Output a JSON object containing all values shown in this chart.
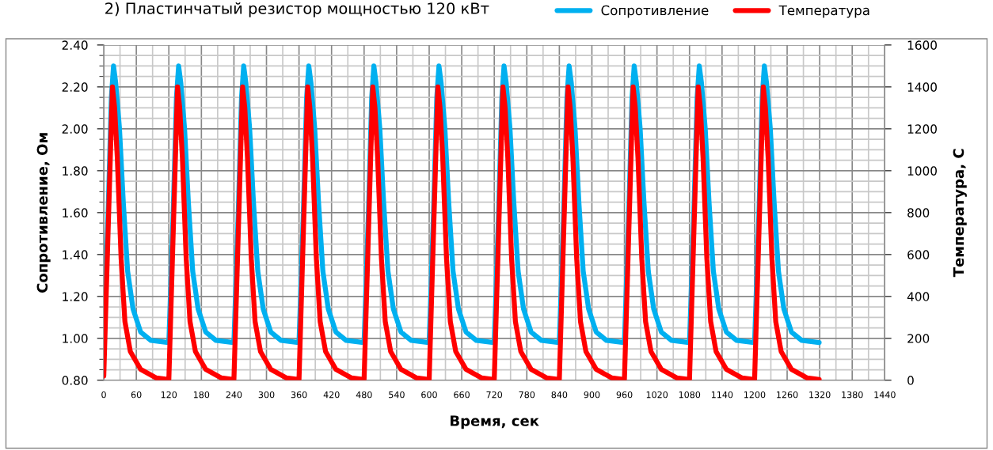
{
  "chart_data": {
    "type": "line",
    "title": "2) Пластинчатый резистор мощностью 120 кВт",
    "xlabel": "Время, сек",
    "ylabel": "Сопротивление, Ом",
    "y2label": "Температура, С",
    "xlim": [
      0,
      1440
    ],
    "xticks": [
      0,
      60,
      120,
      180,
      240,
      300,
      360,
      420,
      480,
      540,
      600,
      660,
      720,
      780,
      840,
      900,
      960,
      1020,
      1080,
      1140,
      1200,
      1260,
      1320,
      1380,
      1440
    ],
    "ylim": [
      0.8,
      2.4
    ],
    "yticks": [
      {
        "value": 0.8,
        "label": "0.80"
      },
      {
        "value": 1.0,
        "label": "1.00"
      },
      {
        "value": 1.2,
        "label": "1.20"
      },
      {
        "value": 1.4,
        "label": "1.40"
      },
      {
        "value": 1.6,
        "label": "1.60"
      },
      {
        "value": 1.8,
        "label": "1.80"
      },
      {
        "value": 2.0,
        "label": "2.00"
      },
      {
        "value": 2.2,
        "label": "2.20"
      },
      {
        "value": 2.4,
        "label": "2.40"
      }
    ],
    "y2lim": [
      0,
      1600
    ],
    "y2ticks": [
      0,
      200,
      400,
      600,
      800,
      1000,
      1200,
      1400,
      1600
    ],
    "grid": true,
    "legend": "right",
    "marker": "none",
    "line_style": "solid",
    "series": [
      {
        "name": "Сопротивление",
        "color": "#00b0f0",
        "axis": "y",
        "x": [
          0,
          8,
          14,
          18,
          22,
          29,
          36,
          44,
          54,
          68,
          87,
          119,
          120,
          128,
          134,
          138,
          142,
          149,
          156,
          164,
          174,
          188,
          207,
          239,
          240,
          248,
          254,
          258,
          262,
          269,
          276,
          284,
          294,
          308,
          327,
          359,
          360,
          368,
          374,
          378,
          382,
          389,
          396,
          404,
          414,
          428,
          447,
          479,
          480,
          488,
          494,
          498,
          502,
          509,
          516,
          524,
          534,
          548,
          567,
          599,
          600,
          608,
          614,
          618,
          622,
          629,
          636,
          644,
          654,
          668,
          687,
          719,
          720,
          728,
          734,
          738,
          742,
          749,
          756,
          764,
          774,
          788,
          807,
          839,
          840,
          848,
          854,
          858,
          862,
          869,
          876,
          884,
          894,
          908,
          927,
          959,
          960,
          968,
          974,
          978,
          982,
          989,
          996,
          1004,
          1014,
          1028,
          1047,
          1079,
          1080,
          1088,
          1094,
          1098,
          1102,
          1109,
          1116,
          1124,
          1134,
          1148,
          1167,
          1199,
          1200,
          1208,
          1214,
          1218,
          1222,
          1229,
          1236,
          1244,
          1254,
          1268,
          1287,
          1319
        ],
        "values": [
          0.98,
          1.6,
          2.15,
          2.3,
          2.22,
          2.0,
          1.65,
          1.32,
          1.14,
          1.03,
          0.99,
          0.98,
          0.98,
          1.6,
          2.15,
          2.3,
          2.22,
          2.0,
          1.65,
          1.32,
          1.14,
          1.03,
          0.99,
          0.98,
          0.98,
          1.6,
          2.15,
          2.3,
          2.22,
          2.0,
          1.65,
          1.32,
          1.14,
          1.03,
          0.99,
          0.98,
          0.98,
          1.6,
          2.15,
          2.3,
          2.22,
          2.0,
          1.65,
          1.32,
          1.14,
          1.03,
          0.99,
          0.98,
          0.98,
          1.6,
          2.15,
          2.3,
          2.22,
          2.0,
          1.65,
          1.32,
          1.14,
          1.03,
          0.99,
          0.98,
          0.98,
          1.6,
          2.15,
          2.3,
          2.22,
          2.0,
          1.65,
          1.32,
          1.14,
          1.03,
          0.99,
          0.98,
          0.98,
          1.6,
          2.15,
          2.3,
          2.22,
          2.0,
          1.65,
          1.32,
          1.14,
          1.03,
          0.99,
          0.98,
          0.98,
          1.6,
          2.15,
          2.3,
          2.22,
          2.0,
          1.65,
          1.32,
          1.14,
          1.03,
          0.99,
          0.98,
          0.98,
          1.6,
          2.15,
          2.3,
          2.22,
          2.0,
          1.65,
          1.32,
          1.14,
          1.03,
          0.99,
          0.98,
          0.98,
          1.6,
          2.15,
          2.3,
          2.22,
          2.0,
          1.65,
          1.32,
          1.14,
          1.03,
          0.99,
          0.98,
          0.98,
          1.6,
          2.15,
          2.3,
          2.22,
          2.0,
          1.65,
          1.32,
          1.14,
          1.03,
          0.99,
          0.98
        ]
      },
      {
        "name": "Температура",
        "color": "#ff0000",
        "axis": "y2",
        "x": [
          0,
          16,
          20,
          25,
          32,
          39,
          49,
          68,
          97,
          119,
          120,
          136,
          140,
          145,
          152,
          159,
          169,
          188,
          217,
          239,
          240,
          256,
          260,
          265,
          272,
          279,
          289,
          308,
          337,
          359,
          360,
          376,
          380,
          385,
          392,
          399,
          409,
          428,
          457,
          479,
          480,
          496,
          500,
          505,
          512,
          519,
          529,
          548,
          577,
          599,
          600,
          616,
          620,
          625,
          632,
          639,
          649,
          668,
          697,
          719,
          720,
          736,
          740,
          745,
          752,
          759,
          769,
          788,
          817,
          839,
          840,
          856,
          860,
          865,
          872,
          879,
          889,
          908,
          937,
          959,
          960,
          976,
          980,
          985,
          992,
          999,
          1009,
          1028,
          1057,
          1079,
          1080,
          1096,
          1100,
          1105,
          1112,
          1119,
          1129,
          1148,
          1177,
          1199,
          1200,
          1216,
          1220,
          1225,
          1232,
          1239,
          1249,
          1268,
          1297,
          1319
        ],
        "values": [
          20,
          1400,
          1300,
          1060,
          580,
          280,
          137,
          52,
          11,
          4,
          5,
          1400,
          1300,
          1060,
          580,
          280,
          137,
          52,
          11,
          4,
          5,
          1400,
          1300,
          1060,
          580,
          280,
          137,
          52,
          11,
          4,
          5,
          1400,
          1300,
          1060,
          580,
          280,
          137,
          52,
          11,
          4,
          5,
          1400,
          1300,
          1060,
          580,
          280,
          137,
          52,
          11,
          4,
          5,
          1400,
          1300,
          1060,
          580,
          280,
          137,
          52,
          11,
          4,
          5,
          1400,
          1300,
          1060,
          580,
          280,
          137,
          52,
          11,
          4,
          5,
          1400,
          1300,
          1060,
          580,
          280,
          137,
          52,
          11,
          4,
          5,
          1400,
          1300,
          1060,
          580,
          280,
          137,
          52,
          11,
          4,
          5,
          1400,
          1300,
          1060,
          580,
          280,
          137,
          52,
          11,
          4,
          5,
          1400,
          1300,
          1060,
          580,
          280,
          137,
          52,
          11,
          4
        ]
      }
    ]
  }
}
